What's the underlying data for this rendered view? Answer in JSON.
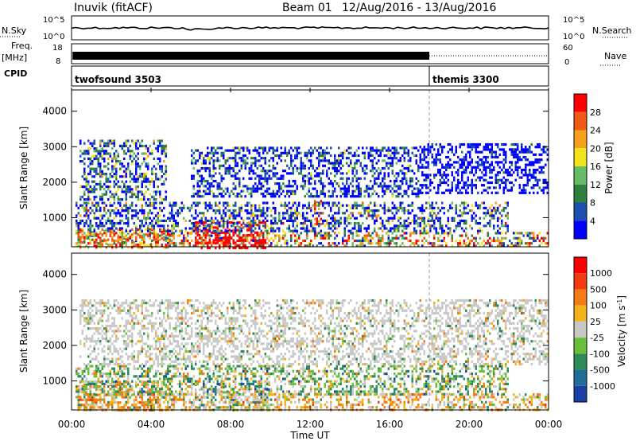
{
  "header": {
    "station": "Inuvik (fitACF)",
    "beam": "Beam 01",
    "date_range": "12/Aug/2016 - 13/Aug/2016"
  },
  "top_strip": {
    "nsky_label": "N.Sky",
    "nsky_ticks": [
      "10^5",
      "10^0"
    ],
    "nsearch_label": "N.Search",
    "nsearch_ticks": [
      "10^5",
      "10^0"
    ],
    "freq_label": "Freq.",
    "freq_unit": "[MHz]",
    "freq_ticks": [
      "18",
      "8"
    ],
    "nave_label": "Nave",
    "nave_ticks": [
      "60",
      "0"
    ],
    "cpid_label": "CPID",
    "cpid_segments": [
      {
        "name": "twofsound 3503",
        "start_hour": 0,
        "end_hour": 18.0
      },
      {
        "name": "themis 3300",
        "start_hour": 18.0,
        "end_hour": 24
      }
    ]
  },
  "chart_data": [
    {
      "type": "heatmap",
      "quantity": "Power",
      "colorbar_label": "Power [dB]",
      "colorbar_ticks": [
        "28",
        "24",
        "20",
        "16",
        "12",
        "8",
        "4"
      ],
      "colors": [
        "#0000ff",
        "#1e4fb0",
        "#2f7f3f",
        "#66bb66",
        "#f2e21a",
        "#f7a21c",
        "#f05a14",
        "#ff0000"
      ],
      "ylabel": "Slant Range [km]",
      "yticks": [
        1000,
        2000,
        3000,
        4000
      ],
      "ylim": [
        180,
        4600
      ],
      "xlim_hours": [
        0,
        24
      ],
      "dashed_marker_hour": 18.0,
      "regions": [
        {
          "t0": 0.2,
          "t1": 24,
          "r0": 180,
          "r1": 600,
          "dist": [
            0.05,
            0.1,
            0.15,
            0.15,
            0.15,
            0.15,
            0.1,
            0.15
          ]
        },
        {
          "t0": 6.2,
          "t1": 9.8,
          "r0": 180,
          "r1": 900,
          "dist": [
            0,
            0,
            0,
            0,
            0,
            0.05,
            0.1,
            0.85
          ]
        },
        {
          "t0": 0.3,
          "t1": 5.0,
          "r0": 180,
          "r1": 700,
          "dist": [
            0,
            0,
            0.05,
            0.1,
            0.15,
            0.2,
            0.25,
            0.25
          ]
        },
        {
          "t0": 0.2,
          "t1": 22,
          "r0": 650,
          "r1": 1450,
          "dist": [
            0.35,
            0.25,
            0.15,
            0.1,
            0.07,
            0.05,
            0.02,
            0.01
          ]
        },
        {
          "t0": 0.4,
          "t1": 4.8,
          "r0": 1500,
          "r1": 3200,
          "dist": [
            0.3,
            0.25,
            0.2,
            0.12,
            0.08,
            0.05,
            0,
            0
          ]
        },
        {
          "t0": 6.0,
          "t1": 17.5,
          "r0": 1600,
          "r1": 3000,
          "dist": [
            0.5,
            0.25,
            0.12,
            0.08,
            0.05,
            0,
            0,
            0
          ]
        },
        {
          "t0": 17.5,
          "t1": 24,
          "r0": 1700,
          "r1": 3100,
          "dist": [
            0.8,
            0.15,
            0.05,
            0,
            0,
            0,
            0,
            0
          ]
        },
        {
          "t0": 12.2,
          "t1": 12.6,
          "r0": 800,
          "r1": 1500,
          "dist": [
            0,
            0,
            0,
            0,
            0.2,
            0.3,
            0.3,
            0.2
          ]
        }
      ]
    },
    {
      "type": "heatmap",
      "quantity": "Velocity",
      "colorbar_label": "Velocity [m s^-1]",
      "colorbar_ticks": [
        "1000",
        "500",
        "100",
        "25",
        "-25",
        "-100",
        "-500",
        "-1000"
      ],
      "colors": [
        "#1a3fa8",
        "#1e6e9a",
        "#2e8b57",
        "#6abf3a",
        "#c8c8c8",
        "#f2b21c",
        "#f57c14",
        "#f03c10",
        "#ff0000"
      ],
      "ylabel": "Slant Range [km]",
      "yticks": [
        1000,
        2000,
        3000,
        4000
      ],
      "ylim": [
        180,
        4600
      ],
      "xlim_hours": [
        0,
        24
      ],
      "xlabel": "Time UT",
      "xticks": [
        "00:00",
        "04:00",
        "08:00",
        "12:00",
        "16:00",
        "20:00",
        "00:00"
      ],
      "dashed_marker_hour": 18.0,
      "regions": [
        {
          "t0": 0.2,
          "t1": 24,
          "r0": 180,
          "r1": 650,
          "dist": [
            0,
            0,
            0.05,
            0.05,
            0.25,
            0.35,
            0.25,
            0.05,
            0
          ]
        },
        {
          "t0": 0.3,
          "t1": 5.0,
          "r0": 180,
          "r1": 1000,
          "dist": [
            0,
            0.02,
            0.05,
            0.08,
            0.1,
            0.25,
            0.45,
            0.05,
            0
          ]
        },
        {
          "t0": 6.0,
          "t1": 10.0,
          "r0": 180,
          "r1": 1000,
          "dist": [
            0,
            0.05,
            0.15,
            0.1,
            0.55,
            0.1,
            0.05,
            0,
            0
          ]
        },
        {
          "t0": 0.2,
          "t1": 22,
          "r0": 650,
          "r1": 1450,
          "dist": [
            0.02,
            0.05,
            0.3,
            0.25,
            0.2,
            0.1,
            0.08,
            0,
            0
          ]
        },
        {
          "t0": 0.4,
          "t1": 24,
          "r0": 1500,
          "r1": 3300,
          "dist": [
            0,
            0,
            0.05,
            0.05,
            0.8,
            0.05,
            0.05,
            0,
            0
          ]
        }
      ]
    }
  ]
}
